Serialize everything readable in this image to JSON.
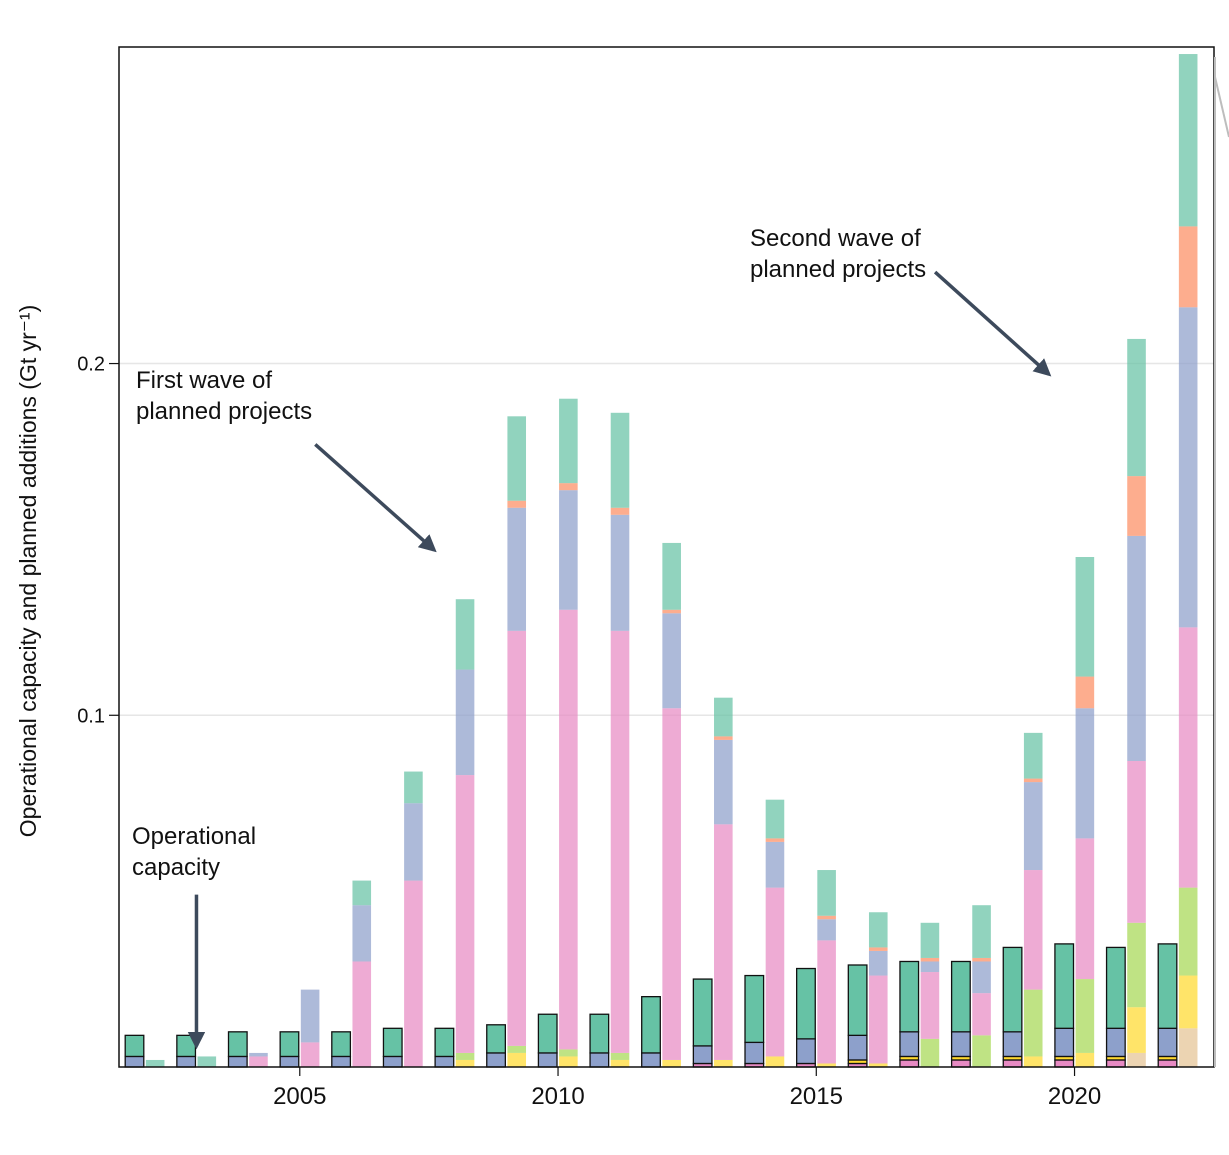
{
  "chart_data": {
    "type": "bar",
    "ylabel": "Operational capacity and planned additions (Gt yr⁻¹)",
    "xlabel": "",
    "ylim": [
      0,
      0.29
    ],
    "xlim": [
      2001.5,
      2022.7
    ],
    "yticks": [
      0.1,
      0.2
    ],
    "ytick_labels": [
      "0.1",
      "0.2"
    ],
    "xticks": [
      2005,
      2010,
      2015,
      2020
    ],
    "xtick_labels": [
      "2005",
      "2010",
      "2015",
      "2020"
    ],
    "grid": "horizontal",
    "colors": {
      "green": "#66c2a5",
      "orange": "#fc8d62",
      "blue": "#8da0cb",
      "pink": "#e78ac3",
      "lime": "#a6d854",
      "yellow": "#ffd92f",
      "tan": "#e5c494",
      "outline": "#111111",
      "grid": "#e6e6e6",
      "arrow": "#3d4a5c"
    },
    "operational_bars": [
      {
        "year": 2002,
        "segments": [
          {
            "c": "blue",
            "v": 0.003
          },
          {
            "c": "green",
            "v": 0.006
          }
        ]
      },
      {
        "year": 2003,
        "segments": [
          {
            "c": "blue",
            "v": 0.003
          },
          {
            "c": "green",
            "v": 0.006
          }
        ]
      },
      {
        "year": 2004,
        "segments": [
          {
            "c": "blue",
            "v": 0.003
          },
          {
            "c": "green",
            "v": 0.007
          }
        ]
      },
      {
        "year": 2005,
        "segments": [
          {
            "c": "blue",
            "v": 0.003
          },
          {
            "c": "green",
            "v": 0.007
          }
        ]
      },
      {
        "year": 2006,
        "segments": [
          {
            "c": "blue",
            "v": 0.003
          },
          {
            "c": "green",
            "v": 0.007
          }
        ]
      },
      {
        "year": 2007,
        "segments": [
          {
            "c": "blue",
            "v": 0.003
          },
          {
            "c": "green",
            "v": 0.008
          }
        ]
      },
      {
        "year": 2008,
        "segments": [
          {
            "c": "blue",
            "v": 0.003
          },
          {
            "c": "green",
            "v": 0.008
          }
        ]
      },
      {
        "year": 2009,
        "segments": [
          {
            "c": "blue",
            "v": 0.004
          },
          {
            "c": "green",
            "v": 0.008
          }
        ]
      },
      {
        "year": 2010,
        "segments": [
          {
            "c": "blue",
            "v": 0.004
          },
          {
            "c": "green",
            "v": 0.011
          }
        ]
      },
      {
        "year": 2011,
        "segments": [
          {
            "c": "blue",
            "v": 0.004
          },
          {
            "c": "green",
            "v": 0.011
          }
        ]
      },
      {
        "year": 2012,
        "segments": [
          {
            "c": "blue",
            "v": 0.004
          },
          {
            "c": "green",
            "v": 0.016
          }
        ]
      },
      {
        "year": 2013,
        "segments": [
          {
            "c": "pink",
            "v": 0.001
          },
          {
            "c": "blue",
            "v": 0.005
          },
          {
            "c": "green",
            "v": 0.019
          }
        ]
      },
      {
        "year": 2014,
        "segments": [
          {
            "c": "pink",
            "v": 0.001
          },
          {
            "c": "blue",
            "v": 0.006
          },
          {
            "c": "green",
            "v": 0.019
          }
        ]
      },
      {
        "year": 2015,
        "segments": [
          {
            "c": "pink",
            "v": 0.001
          },
          {
            "c": "blue",
            "v": 0.007
          },
          {
            "c": "green",
            "v": 0.02
          }
        ]
      },
      {
        "year": 2016,
        "segments": [
          {
            "c": "pink",
            "v": 0.001
          },
          {
            "c": "yellow",
            "v": 0.001
          },
          {
            "c": "blue",
            "v": 0.007
          },
          {
            "c": "green",
            "v": 0.02
          }
        ]
      },
      {
        "year": 2017,
        "segments": [
          {
            "c": "pink",
            "v": 0.002
          },
          {
            "c": "yellow",
            "v": 0.001
          },
          {
            "c": "blue",
            "v": 0.007
          },
          {
            "c": "green",
            "v": 0.02
          }
        ]
      },
      {
        "year": 2018,
        "segments": [
          {
            "c": "pink",
            "v": 0.002
          },
          {
            "c": "yellow",
            "v": 0.001
          },
          {
            "c": "blue",
            "v": 0.007
          },
          {
            "c": "green",
            "v": 0.02
          }
        ]
      },
      {
        "year": 2019,
        "segments": [
          {
            "c": "pink",
            "v": 0.002
          },
          {
            "c": "yellow",
            "v": 0.001
          },
          {
            "c": "blue",
            "v": 0.007
          },
          {
            "c": "green",
            "v": 0.024
          }
        ]
      },
      {
        "year": 2020,
        "segments": [
          {
            "c": "pink",
            "v": 0.002
          },
          {
            "c": "yellow",
            "v": 0.001
          },
          {
            "c": "blue",
            "v": 0.008
          },
          {
            "c": "green",
            "v": 0.024
          }
        ]
      },
      {
        "year": 2021,
        "segments": [
          {
            "c": "pink",
            "v": 0.002
          },
          {
            "c": "yellow",
            "v": 0.001
          },
          {
            "c": "blue",
            "v": 0.008
          },
          {
            "c": "green",
            "v": 0.023
          }
        ]
      },
      {
        "year": 2022,
        "segments": [
          {
            "c": "pink",
            "v": 0.002
          },
          {
            "c": "yellow",
            "v": 0.001
          },
          {
            "c": "blue",
            "v": 0.008
          },
          {
            "c": "green",
            "v": 0.024
          }
        ]
      }
    ],
    "planned_bars": [
      {
        "year": 2002,
        "segments": [
          {
            "c": "green",
            "v": 0.002
          }
        ]
      },
      {
        "year": 2003,
        "segments": [
          {
            "c": "green",
            "v": 0.003
          }
        ]
      },
      {
        "year": 2004,
        "segments": [
          {
            "c": "pink",
            "v": 0.003
          },
          {
            "c": "blue",
            "v": 0.001
          }
        ]
      },
      {
        "year": 2005,
        "segments": [
          {
            "c": "pink",
            "v": 0.007
          },
          {
            "c": "blue",
            "v": 0.015
          }
        ]
      },
      {
        "year": 2006,
        "segments": [
          {
            "c": "pink",
            "v": 0.03
          },
          {
            "c": "blue",
            "v": 0.016
          },
          {
            "c": "green",
            "v": 0.007
          }
        ]
      },
      {
        "year": 2007,
        "segments": [
          {
            "c": "pink",
            "v": 0.053
          },
          {
            "c": "blue",
            "v": 0.022
          },
          {
            "c": "green",
            "v": 0.009
          }
        ]
      },
      {
        "year": 2008,
        "segments": [
          {
            "c": "yellow",
            "v": 0.002
          },
          {
            "c": "lime",
            "v": 0.002
          },
          {
            "c": "pink",
            "v": 0.079
          },
          {
            "c": "blue",
            "v": 0.03
          },
          {
            "c": "green",
            "v": 0.02
          }
        ]
      },
      {
        "year": 2009,
        "segments": [
          {
            "c": "yellow",
            "v": 0.004
          },
          {
            "c": "lime",
            "v": 0.002
          },
          {
            "c": "pink",
            "v": 0.118
          },
          {
            "c": "blue",
            "v": 0.035
          },
          {
            "c": "orange",
            "v": 0.002
          },
          {
            "c": "green",
            "v": 0.024
          }
        ]
      },
      {
        "year": 2010,
        "segments": [
          {
            "c": "yellow",
            "v": 0.003
          },
          {
            "c": "lime",
            "v": 0.002
          },
          {
            "c": "pink",
            "v": 0.125
          },
          {
            "c": "blue",
            "v": 0.034
          },
          {
            "c": "orange",
            "v": 0.002
          },
          {
            "c": "green",
            "v": 0.024
          }
        ]
      },
      {
        "year": 2011,
        "segments": [
          {
            "c": "yellow",
            "v": 0.002
          },
          {
            "c": "lime",
            "v": 0.002
          },
          {
            "c": "pink",
            "v": 0.12
          },
          {
            "c": "blue",
            "v": 0.033
          },
          {
            "c": "orange",
            "v": 0.002
          },
          {
            "c": "green",
            "v": 0.027
          }
        ]
      },
      {
        "year": 2012,
        "segments": [
          {
            "c": "yellow",
            "v": 0.002
          },
          {
            "c": "pink",
            "v": 0.1
          },
          {
            "c": "blue",
            "v": 0.027
          },
          {
            "c": "orange",
            "v": 0.001
          },
          {
            "c": "green",
            "v": 0.019
          }
        ]
      },
      {
        "year": 2013,
        "segments": [
          {
            "c": "yellow",
            "v": 0.002
          },
          {
            "c": "pink",
            "v": 0.067
          },
          {
            "c": "blue",
            "v": 0.024
          },
          {
            "c": "orange",
            "v": 0.001
          },
          {
            "c": "green",
            "v": 0.011
          }
        ]
      },
      {
        "year": 2014,
        "segments": [
          {
            "c": "yellow",
            "v": 0.003
          },
          {
            "c": "pink",
            "v": 0.048
          },
          {
            "c": "blue",
            "v": 0.013
          },
          {
            "c": "orange",
            "v": 0.001
          },
          {
            "c": "green",
            "v": 0.011
          }
        ]
      },
      {
        "year": 2015,
        "segments": [
          {
            "c": "yellow",
            "v": 0.001
          },
          {
            "c": "pink",
            "v": 0.035
          },
          {
            "c": "blue",
            "v": 0.006
          },
          {
            "c": "orange",
            "v": 0.001
          },
          {
            "c": "green",
            "v": 0.013
          }
        ]
      },
      {
        "year": 2016,
        "segments": [
          {
            "c": "yellow",
            "v": 0.001
          },
          {
            "c": "pink",
            "v": 0.025
          },
          {
            "c": "blue",
            "v": 0.007
          },
          {
            "c": "orange",
            "v": 0.001
          },
          {
            "c": "green",
            "v": 0.01
          }
        ]
      },
      {
        "year": 2017,
        "segments": [
          {
            "c": "lime",
            "v": 0.008
          },
          {
            "c": "pink",
            "v": 0.019
          },
          {
            "c": "blue",
            "v": 0.003
          },
          {
            "c": "orange",
            "v": 0.001
          },
          {
            "c": "green",
            "v": 0.01
          }
        ]
      },
      {
        "year": 2018,
        "segments": [
          {
            "c": "lime",
            "v": 0.009
          },
          {
            "c": "pink",
            "v": 0.012
          },
          {
            "c": "blue",
            "v": 0.009
          },
          {
            "c": "orange",
            "v": 0.001
          },
          {
            "c": "green",
            "v": 0.015
          }
        ]
      },
      {
        "year": 2019,
        "segments": [
          {
            "c": "yellow",
            "v": 0.003
          },
          {
            "c": "lime",
            "v": 0.019
          },
          {
            "c": "pink",
            "v": 0.034
          },
          {
            "c": "blue",
            "v": 0.025
          },
          {
            "c": "orange",
            "v": 0.001
          },
          {
            "c": "green",
            "v": 0.013
          }
        ]
      },
      {
        "year": 2020,
        "segments": [
          {
            "c": "yellow",
            "v": 0.004
          },
          {
            "c": "lime",
            "v": 0.021
          },
          {
            "c": "pink",
            "v": 0.04
          },
          {
            "c": "blue",
            "v": 0.037
          },
          {
            "c": "orange",
            "v": 0.009
          },
          {
            "c": "green",
            "v": 0.034
          }
        ]
      },
      {
        "year": 2021,
        "segments": [
          {
            "c": "tan",
            "v": 0.004
          },
          {
            "c": "yellow",
            "v": 0.013
          },
          {
            "c": "lime",
            "v": 0.024
          },
          {
            "c": "pink",
            "v": 0.046
          },
          {
            "c": "blue",
            "v": 0.064
          },
          {
            "c": "orange",
            "v": 0.017
          },
          {
            "c": "green",
            "v": 0.039
          }
        ]
      },
      {
        "year": 2022,
        "segments": [
          {
            "c": "tan",
            "v": 0.011
          },
          {
            "c": "yellow",
            "v": 0.015
          },
          {
            "c": "lime",
            "v": 0.025
          },
          {
            "c": "pink",
            "v": 0.074
          },
          {
            "c": "blue",
            "v": 0.091
          },
          {
            "c": "orange",
            "v": 0.023
          },
          {
            "c": "green",
            "v": 0.049
          }
        ]
      }
    ],
    "annotations": [
      {
        "id": "first-wave",
        "lines": [
          "First wave of",
          "planned projects"
        ],
        "arrow_tip": {
          "x": 2007.6,
          "y": 0.147
        },
        "arrow_tail": {
          "x": 2005.3,
          "y": 0.177
        }
      },
      {
        "id": "second-wave",
        "lines": [
          "Second wave of",
          "planned projects"
        ],
        "arrow_tip": {
          "x": 2019.5,
          "y": 0.197
        },
        "arrow_tail": {
          "x": 2017.3,
          "y": 0.226
        }
      },
      {
        "id": "operational",
        "lines": [
          "Operational",
          "capacity"
        ],
        "arrow_tip": {
          "x": 2003.0,
          "y": 0.006
        },
        "arrow_tail": {
          "x": 2003.0,
          "y": 0.049
        }
      }
    ]
  }
}
